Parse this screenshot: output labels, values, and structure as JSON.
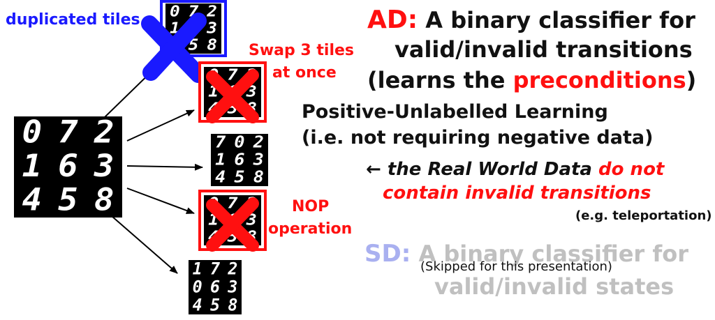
{
  "puzzles": {
    "source": [
      "0",
      "7",
      "2",
      "1",
      "6",
      "3",
      "4",
      "5",
      "8"
    ],
    "duplicated": [
      "0",
      "7",
      "2",
      "1",
      "6",
      "3",
      "4",
      "5",
      "8"
    ],
    "swap3": [
      "0",
      "7",
      "2",
      "1",
      "6",
      "3",
      "4",
      "5",
      "8"
    ],
    "valid_swap": [
      "7",
      "0",
      "2",
      "1",
      "6",
      "3",
      "4",
      "5",
      "8"
    ],
    "nop": [
      "0",
      "7",
      "2",
      "1",
      "6",
      "3",
      "4",
      "5",
      "8"
    ],
    "valid_swap2": [
      "1",
      "7",
      "2",
      "0",
      "6",
      "3",
      "4",
      "5",
      "8"
    ]
  },
  "labels": {
    "duplicated": "duplicated tiles",
    "swap3_line1": "Swap 3 tiles",
    "swap3_line2": "at once",
    "nop_line1": "NOP",
    "nop_line2": "operation"
  },
  "ad": {
    "prefix": "AD:",
    "line1": "A binary classifier for",
    "line2": "valid/invalid transitions",
    "line3_open": "(learns the ",
    "line3_highlight": "preconditions",
    "line3_close": ")",
    "pu_line1": "Positive-Unlabelled Learning",
    "pu_line2": "(i.e. not requiring negative data)",
    "rw_arrow": "←",
    "rw_part1": "the Real World Data",
    "rw_part2": "do not",
    "rw_line2": "contain invalid transitions",
    "example": "(e.g. teleportation)"
  },
  "sd": {
    "prefix": "SD:",
    "line1": "A binary classifier for",
    "line2": "valid/invalid states",
    "skipped": "(Skipped for this presentation)"
  },
  "colors": {
    "red": "#ff1010",
    "blue": "#1a1aff",
    "gray": "#c0c0c0",
    "sd_prefix": "#a9b0f0"
  }
}
